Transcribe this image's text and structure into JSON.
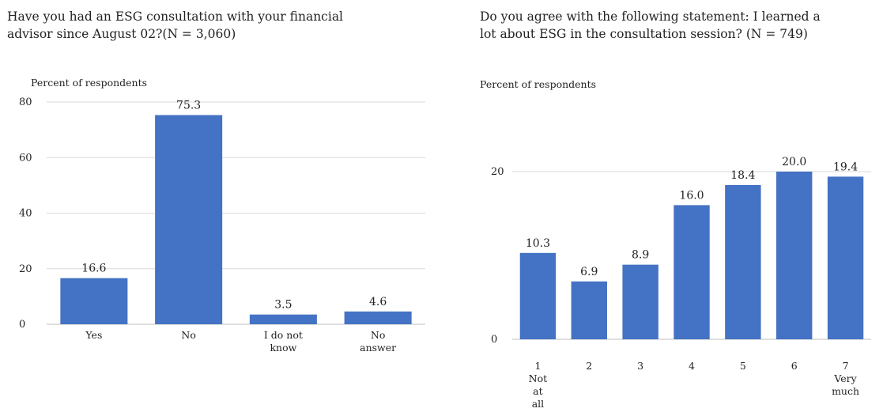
{
  "chart_data": [
    {
      "type": "bar",
      "title": "Have you had an ESG consultation with your financial advisor since August 02?(N = 3,060)",
      "title_lines": [
        "Have you had an ESG consultation with your financial",
        "advisor since August 02?(N = 3,060)"
      ],
      "ylabel": "Percent of respondents",
      "xlabel": "",
      "categories": [
        "Yes",
        "No",
        "I do not know",
        "No answer"
      ],
      "category_lines": [
        [
          "Yes"
        ],
        [
          "No"
        ],
        [
          "I do not",
          "know"
        ],
        [
          "No",
          "answer"
        ]
      ],
      "values": [
        16.6,
        75.3,
        3.5,
        4.6
      ],
      "data_labels": [
        "16.6",
        "75.3",
        "3.5",
        "4.6"
      ],
      "ylim": [
        0,
        80
      ],
      "yticks": [
        0,
        20,
        40,
        60,
        80
      ],
      "grid": true,
      "bar_color": "#4472C4"
    },
    {
      "type": "bar",
      "title": "Do you agree with the following statement: I learned a lot about ESG in the consultation session? (N = 749)",
      "title_lines": [
        "Do you agree with the following statement: I learned a",
        "lot about ESG in the consultation session? (N = 749)"
      ],
      "ylabel": "Percent of respondents",
      "xlabel": "",
      "categories": [
        "1 Not at all",
        "2",
        "3",
        "4",
        "5",
        "6",
        "7 Very much"
      ],
      "category_lines": [
        [
          "1",
          "Not",
          "at",
          "all"
        ],
        [
          "2"
        ],
        [
          "3"
        ],
        [
          "4"
        ],
        [
          "5"
        ],
        [
          "6"
        ],
        [
          "7",
          "Very",
          "much"
        ]
      ],
      "values": [
        10.3,
        6.9,
        8.9,
        16.0,
        18.4,
        20.0,
        19.4
      ],
      "data_labels": [
        "10.3",
        "6.9",
        "8.9",
        "16.0",
        "18.4",
        "20.0",
        "19.4"
      ],
      "ylim": [
        0,
        20
      ],
      "yticks": [
        0,
        20
      ],
      "grid": true,
      "bar_color": "#4472C4"
    }
  ]
}
